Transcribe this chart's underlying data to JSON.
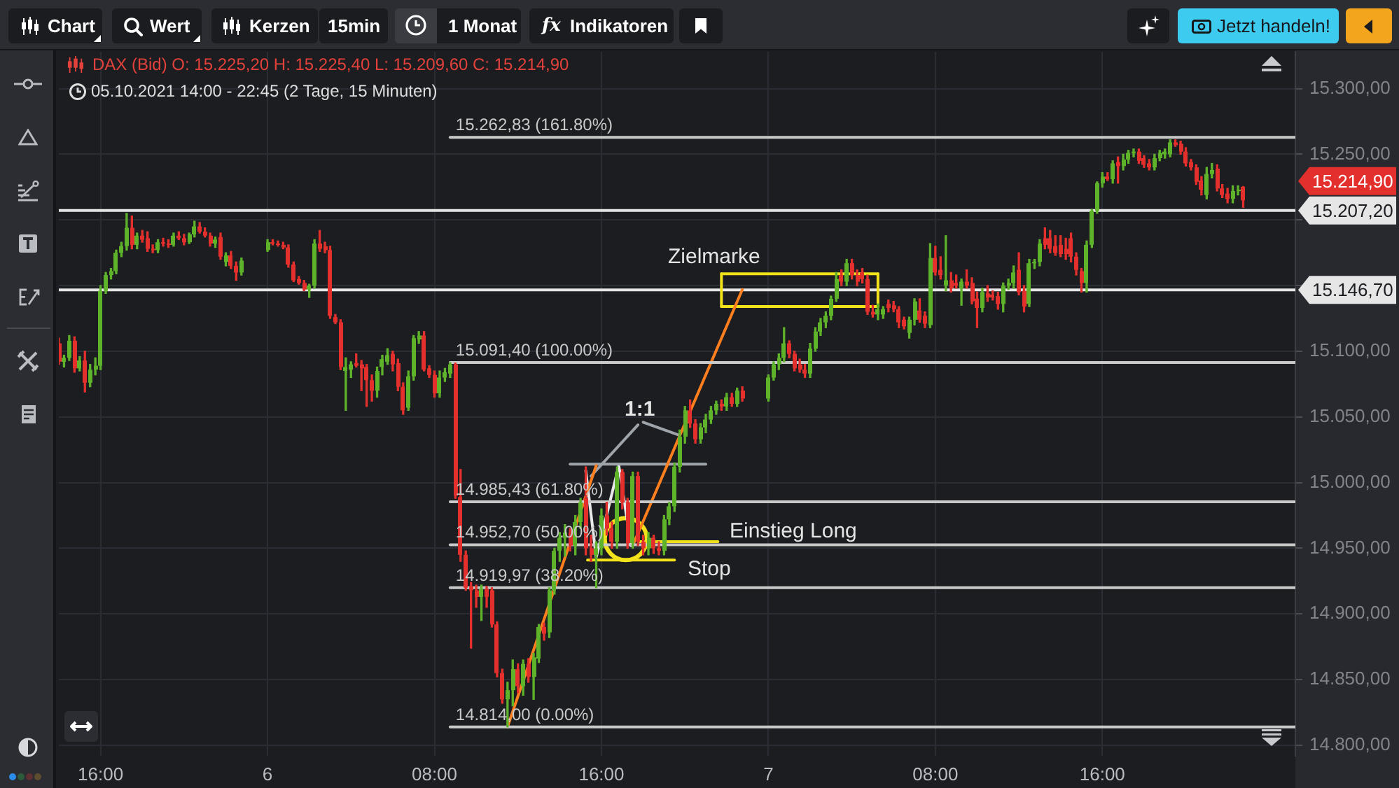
{
  "chart_data": {
    "type": "candlestick",
    "title": "DAX (Bid) O: 15.225,20 H: 15.225,40 L: 15.209,60 C: 15.214,90",
    "subtitle": "05.10.2021 14:00 - 22:45 (2 Tage, 15 Minuten)",
    "x": [
      "2021-10-05T14:00",
      "2021-10-05T14:15",
      "2021-10-05T14:30",
      "2021-10-05T14:45",
      "2021-10-05T15:00",
      "2021-10-05T15:15",
      "2021-10-05T15:30",
      "2021-10-05T15:45",
      "2021-10-05T16:00",
      "2021-10-05T16:15",
      "2021-10-05T16:30",
      "2021-10-05T16:45",
      "2021-10-05T17:00",
      "2021-10-05T17:15",
      "2021-10-05T17:30",
      "2021-10-05T17:45",
      "2021-10-05T18:00",
      "2021-10-05T18:15",
      "2021-10-05T18:30",
      "2021-10-05T18:45",
      "2021-10-05T19:00",
      "2021-10-05T19:15",
      "2021-10-05T19:30",
      "2021-10-05T19:45",
      "2021-10-05T20:00",
      "2021-10-05T20:15",
      "2021-10-05T20:30",
      "2021-10-05T20:45",
      "2021-10-05T21:00",
      "2021-10-05T21:15",
      "2021-10-05T21:30",
      "2021-10-05T21:45",
      "2021-10-05T22:00",
      "2021-10-05T22:15",
      "2021-10-05T22:30",
      "2021-10-05T22:45",
      "2021-10-06T00:00",
      "2021-10-06T00:15",
      "2021-10-06T00:30",
      "2021-10-06T00:45",
      "2021-10-06T01:00",
      "2021-10-06T01:15",
      "2021-10-06T01:30",
      "2021-10-06T01:45",
      "2021-10-06T02:00",
      "2021-10-06T02:15",
      "2021-10-06T02:30",
      "2021-10-06T02:45",
      "2021-10-06T03:00",
      "2021-10-06T03:15",
      "2021-10-06T03:30",
      "2021-10-06T03:45",
      "2021-10-06T04:00",
      "2021-10-06T04:15",
      "2021-10-06T04:30",
      "2021-10-06T04:45",
      "2021-10-06T05:00",
      "2021-10-06T05:15",
      "2021-10-06T05:30",
      "2021-10-06T05:45",
      "2021-10-06T06:00",
      "2021-10-06T06:15",
      "2021-10-06T06:30",
      "2021-10-06T06:45",
      "2021-10-06T07:00",
      "2021-10-06T07:15",
      "2021-10-06T07:30",
      "2021-10-06T07:45",
      "2021-10-06T08:00",
      "2021-10-06T08:15",
      "2021-10-06T08:30",
      "2021-10-06T08:45",
      "2021-10-06T09:00",
      "2021-10-06T09:15",
      "2021-10-06T09:30",
      "2021-10-06T09:45",
      "2021-10-06T10:00",
      "2021-10-06T10:15",
      "2021-10-06T10:30",
      "2021-10-06T10:45",
      "2021-10-06T11:00",
      "2021-10-06T11:15",
      "2021-10-06T11:30",
      "2021-10-06T11:45",
      "2021-10-06T12:00",
      "2021-10-06T12:15",
      "2021-10-06T12:30",
      "2021-10-06T12:45",
      "2021-10-06T13:00",
      "2021-10-06T13:15",
      "2021-10-06T13:30",
      "2021-10-06T13:45",
      "2021-10-06T14:00",
      "2021-10-06T14:15",
      "2021-10-06T14:30",
      "2021-10-06T14:45",
      "2021-10-06T15:00",
      "2021-10-06T15:15",
      "2021-10-06T15:30",
      "2021-10-06T15:45",
      "2021-10-06T16:00",
      "2021-10-06T16:15",
      "2021-10-06T16:30",
      "2021-10-06T16:45",
      "2021-10-06T17:00",
      "2021-10-06T17:15",
      "2021-10-06T17:30",
      "2021-10-06T17:45",
      "2021-10-06T18:00",
      "2021-10-06T18:15",
      "2021-10-06T18:30",
      "2021-10-06T18:45",
      "2021-10-06T19:00",
      "2021-10-06T19:15",
      "2021-10-06T19:30",
      "2021-10-06T19:45",
      "2021-10-06T20:00",
      "2021-10-06T20:15",
      "2021-10-06T20:30",
      "2021-10-06T20:45",
      "2021-10-06T21:00",
      "2021-10-06T21:15",
      "2021-10-06T21:30",
      "2021-10-06T21:45",
      "2021-10-06T22:00",
      "2021-10-06T22:15",
      "2021-10-06T22:30",
      "2021-10-06T22:45",
      "2021-10-07T00:00",
      "2021-10-07T00:15",
      "2021-10-07T00:30",
      "2021-10-07T00:45",
      "2021-10-07T01:00",
      "2021-10-07T01:15",
      "2021-10-07T01:30",
      "2021-10-07T01:45",
      "2021-10-07T02:00",
      "2021-10-07T02:15",
      "2021-10-07T02:30",
      "2021-10-07T02:45",
      "2021-10-07T03:00",
      "2021-10-07T03:15",
      "2021-10-07T03:30",
      "2021-10-07T03:45",
      "2021-10-07T04:00",
      "2021-10-07T04:15",
      "2021-10-07T04:30",
      "2021-10-07T04:45",
      "2021-10-07T05:00",
      "2021-10-07T05:15",
      "2021-10-07T05:30",
      "2021-10-07T05:45",
      "2021-10-07T06:00",
      "2021-10-07T06:15",
      "2021-10-07T06:30",
      "2021-10-07T06:45",
      "2021-10-07T07:00",
      "2021-10-07T07:15",
      "2021-10-07T07:30",
      "2021-10-07T07:45",
      "2021-10-07T08:00",
      "2021-10-07T08:15",
      "2021-10-07T08:30",
      "2021-10-07T08:45",
      "2021-10-07T09:00",
      "2021-10-07T09:15",
      "2021-10-07T09:30",
      "2021-10-07T09:45",
      "2021-10-07T10:00",
      "2021-10-07T10:15",
      "2021-10-07T10:30",
      "2021-10-07T10:45",
      "2021-10-07T11:00",
      "2021-10-07T11:15",
      "2021-10-07T11:30",
      "2021-10-07T11:45",
      "2021-10-07T12:00",
      "2021-10-07T12:15",
      "2021-10-07T12:30",
      "2021-10-07T12:45",
      "2021-10-07T13:00",
      "2021-10-07T13:15",
      "2021-10-07T13:30",
      "2021-10-07T13:45",
      "2021-10-07T14:00",
      "2021-10-07T14:15",
      "2021-10-07T14:30",
      "2021-10-07T14:45",
      "2021-10-07T15:00",
      "2021-10-07T15:15",
      "2021-10-07T15:30",
      "2021-10-07T15:45",
      "2021-10-07T16:00",
      "2021-10-07T16:15",
      "2021-10-07T16:30",
      "2021-10-07T16:45",
      "2021-10-07T17:00",
      "2021-10-07T17:15",
      "2021-10-07T17:30",
      "2021-10-07T17:45",
      "2021-10-07T18:00",
      "2021-10-07T18:15",
      "2021-10-07T18:30",
      "2021-10-07T18:45",
      "2021-10-07T19:00",
      "2021-10-07T19:15",
      "2021-10-07T19:30",
      "2021-10-07T19:45",
      "2021-10-07T20:00",
      "2021-10-07T20:15",
      "2021-10-07T20:30",
      "2021-10-07T20:45",
      "2021-10-07T21:00",
      "2021-10-07T21:15",
      "2021-10-07T21:30",
      "2021-10-07T21:45",
      "2021-10-07T22:00",
      "2021-10-07T22:15",
      "2021-10-07T22:30",
      "2021-10-07T22:45"
    ],
    "ohlc": [
      [
        15106,
        15110,
        15090,
        15092
      ],
      [
        15092,
        15097,
        15088,
        15095
      ],
      [
        15095,
        15112,
        15093,
        15108
      ],
      [
        15108,
        15111,
        15084,
        15087
      ],
      [
        15087,
        15096,
        15085,
        15093
      ],
      [
        15093,
        15100,
        15069,
        15076
      ],
      [
        15076,
        15090,
        15073,
        15086
      ],
      [
        15086,
        15095,
        15082,
        15089
      ],
      [
        15089,
        15150,
        15086,
        15146
      ],
      [
        15146,
        15160,
        15144,
        15158
      ],
      [
        15158,
        15163,
        15155,
        15161
      ],
      [
        15161,
        15177,
        15159,
        15175
      ],
      [
        15175,
        15183,
        15172,
        15180
      ],
      [
        15180,
        15205,
        15177,
        15194
      ],
      [
        15194,
        15203,
        15178,
        15181
      ],
      [
        15181,
        15190,
        15178,
        15188
      ],
      [
        15188,
        15192,
        15183,
        15185
      ],
      [
        15186,
        15191,
        15176,
        15178
      ],
      [
        15178,
        15181,
        15175,
        15177
      ],
      [
        15177,
        15185,
        15175,
        15183
      ],
      [
        15183,
        15186,
        15180,
        15182
      ],
      [
        15182,
        15185,
        15179,
        15181
      ],
      [
        15181,
        15190,
        15180,
        15188
      ],
      [
        15188,
        15191,
        15185,
        15186
      ],
      [
        15186,
        15189,
        15181,
        15183
      ],
      [
        15183,
        15190,
        15182,
        15189
      ],
      [
        15189,
        15199,
        15187,
        15195
      ],
      [
        15195,
        15198,
        15190,
        15191
      ],
      [
        15191,
        15194,
        15187,
        15188
      ],
      [
        15188,
        15190,
        15180,
        15182
      ],
      [
        15182,
        15187,
        15179,
        15185
      ],
      [
        15187,
        15190,
        15170,
        15172
      ],
      [
        15168,
        15175,
        15165,
        15173
      ],
      [
        15173,
        15176,
        15163,
        15165
      ],
      [
        15165,
        15168,
        15154,
        15160
      ],
      [
        15160,
        15171,
        15158,
        15169
      ],
      [
        15177,
        15185,
        15176,
        15183
      ],
      [
        15183,
        15185,
        15181,
        15182
      ],
      [
        15182,
        15184,
        15180,
        15181
      ],
      [
        15181,
        15183,
        15178,
        15179
      ],
      [
        15179,
        15181,
        15164,
        15166
      ],
      [
        15166,
        15168,
        15153,
        15154
      ],
      [
        15155,
        15157,
        15151,
        15152
      ],
      [
        15152,
        15154,
        15146,
        15147
      ],
      [
        15147,
        15151,
        15141,
        15150
      ],
      [
        15150,
        15185,
        15148,
        15182
      ],
      [
        15182,
        15192,
        15176,
        15178
      ],
      [
        15180,
        15183,
        15175,
        15177
      ],
      [
        15177,
        15180,
        15125,
        15127
      ],
      [
        15126,
        15128,
        15121,
        15122
      ],
      [
        15122,
        15124,
        15086,
        15088
      ],
      [
        15085,
        15095,
        15055,
        15088
      ],
      [
        15086,
        15092,
        15080,
        15090
      ],
      [
        15091,
        15098,
        15088,
        15089
      ],
      [
        15090,
        15093,
        15070,
        15087
      ],
      [
        15088,
        15090,
        15058,
        15078
      ],
      [
        15078,
        15082,
        15062,
        15070
      ],
      [
        15070,
        15088,
        15065,
        15085
      ],
      [
        15088,
        15097,
        15082,
        15094
      ],
      [
        15092,
        15102,
        15090,
        15097
      ],
      [
        15098,
        15100,
        15085,
        15090
      ],
      [
        15091,
        15094,
        15070,
        15073
      ],
      [
        15073,
        15076,
        15052,
        15055
      ],
      [
        15057,
        15085,
        15055,
        15081
      ],
      [
        15081,
        15112,
        15078,
        15110
      ],
      [
        15109,
        15115,
        15106,
        15112
      ],
      [
        15112,
        15115,
        15085,
        15086
      ],
      [
        15087,
        15089,
        15080,
        15082
      ],
      [
        15082,
        15085,
        15065,
        15068
      ],
      [
        15068,
        15085,
        15065,
        15080
      ],
      [
        15080,
        15087,
        15077,
        15084
      ],
      [
        15083,
        15091.4,
        15080,
        15090
      ],
      [
        15090,
        15091,
        14988,
        14990
      ],
      [
        14989,
        15010,
        14940,
        14945
      ],
      [
        14945,
        14948,
        14918,
        14920
      ],
      [
        14921,
        14924,
        14874,
        14918
      ],
      [
        14918,
        14922,
        14905,
        14913
      ],
      [
        14913,
        14922,
        14895,
        14919
      ],
      [
        14919,
        14921,
        14905,
        14913
      ],
      [
        14918,
        14920,
        14890,
        14892
      ],
      [
        14892,
        14894,
        14852,
        14855
      ],
      [
        14855,
        14858,
        14832,
        14835
      ],
      [
        14835,
        14848,
        14814,
        14842
      ],
      [
        14842,
        14865,
        14830,
        14858
      ],
      [
        14858,
        14862,
        14840,
        14845
      ],
      [
        14845,
        14865,
        14838,
        14862
      ],
      [
        14862,
        14866,
        14848,
        14852
      ],
      [
        14852,
        14870,
        14835,
        14867
      ],
      [
        14866,
        14892,
        14863,
        14890
      ],
      [
        14890,
        14893,
        14880,
        14885
      ],
      [
        14886,
        14920,
        14882,
        14918
      ],
      [
        14918,
        14950,
        14915,
        14948
      ],
      [
        14948,
        14962,
        14940,
        14958
      ],
      [
        14958,
        14968,
        14944,
        14962
      ],
      [
        14962,
        14965,
        14948,
        14952
      ],
      [
        14952,
        14975,
        14945,
        14970
      ],
      [
        14970,
        14988,
        14965,
        14985
      ],
      [
        14988,
        15012,
        14945,
        14950
      ],
      [
        14950,
        14960,
        14940,
        14945
      ],
      [
        14945,
        14955,
        14920,
        14950
      ],
      [
        14950,
        14980,
        14945,
        14975
      ],
      [
        14975,
        14985,
        14960,
        14965
      ],
      [
        14965,
        14970,
        14950,
        14955
      ],
      [
        14955,
        15012,
        14950,
        15008
      ],
      [
        15008,
        15010,
        14980,
        14985
      ],
      [
        14985,
        14988,
        14950,
        14954
      ],
      [
        14954,
        15008,
        14950,
        15005
      ],
      [
        15005,
        15008,
        14952,
        14955
      ],
      [
        14955,
        14960,
        14945,
        14950
      ],
      [
        14950,
        14962,
        14945,
        14958
      ],
      [
        14958,
        14960,
        14946,
        14950
      ],
      [
        14950,
        14955,
        14945,
        14948
      ],
      [
        14948,
        14975,
        14945,
        14972
      ],
      [
        14972,
        14985,
        14968,
        14982
      ],
      [
        14982,
        15015,
        14978,
        15012
      ],
      [
        15012,
        15040,
        15008,
        15035
      ],
      [
        15035,
        15058,
        15030,
        15055
      ],
      [
        15055,
        15063,
        15042,
        15045
      ],
      [
        15045,
        15048,
        15030,
        15033
      ],
      [
        15033,
        15045,
        15030,
        15042
      ],
      [
        15042,
        15052,
        15038,
        15048
      ],
      [
        15048,
        15058,
        15045,
        15055
      ],
      [
        15055,
        15062,
        15052,
        15060
      ],
      [
        15060,
        15063,
        15055,
        15058
      ],
      [
        15058,
        15068,
        15055,
        15065
      ],
      [
        15065,
        15068,
        15058,
        15060
      ],
      [
        15060,
        15072,
        15058,
        15070
      ],
      [
        15070,
        15073,
        15062,
        15064
      ],
      [
        15064,
        15082,
        15062,
        15080
      ],
      [
        15080,
        15092,
        15078,
        15090
      ],
      [
        15090,
        15098,
        15086,
        15095
      ],
      [
        15095,
        15118,
        15092,
        15106
      ],
      [
        15106,
        15108,
        15095,
        15098
      ],
      [
        15098,
        15100,
        15085,
        15087
      ],
      [
        15090,
        15094,
        15084,
        15086
      ],
      [
        15086,
        15090,
        15080,
        15083
      ],
      [
        15083,
        15106,
        15080,
        15102
      ],
      [
        15102,
        15118,
        15100,
        15115
      ],
      [
        15115,
        15125,
        15112,
        15122
      ],
      [
        15122,
        15130,
        15118,
        15127
      ],
      [
        15127,
        15142,
        15124,
        15140
      ],
      [
        15140,
        15160,
        15138,
        15155
      ],
      [
        15158,
        15162,
        15150,
        15153
      ],
      [
        15153,
        15170,
        15150,
        15167
      ],
      [
        15167,
        15170,
        15155,
        15158
      ],
      [
        15158,
        15162,
        15150,
        15153
      ],
      [
        15160,
        15163,
        15152,
        15155
      ],
      [
        15155,
        15158,
        15128,
        15130
      ],
      [
        15130,
        15135,
        15126,
        15128
      ],
      [
        15128,
        15136,
        15124,
        15132
      ],
      [
        15128,
        15134,
        15125,
        15132
      ],
      [
        15136,
        15139,
        15130,
        15133
      ],
      [
        15135,
        15138,
        15130,
        15132
      ],
      [
        15132,
        15134,
        15118,
        15122
      ],
      [
        15124,
        15126,
        15117,
        15119
      ],
      [
        15114,
        15126,
        15110,
        15124
      ],
      [
        15124,
        15140,
        15120,
        15138
      ],
      [
        15131,
        15140,
        15122,
        15124
      ],
      [
        15127,
        15130,
        15118,
        15121
      ],
      [
        15120,
        15182,
        15118,
        15171
      ],
      [
        15171,
        15180,
        15158,
        15160
      ],
      [
        15162,
        15172,
        15155,
        15158
      ],
      [
        15150,
        15188,
        15146,
        15154
      ],
      [
        15154,
        15160,
        15145,
        15148
      ],
      [
        15152,
        15158,
        15148,
        15150
      ],
      [
        15148,
        15155,
        15135,
        15153
      ],
      [
        15153,
        15162,
        15148,
        15150
      ],
      [
        15152,
        15156,
        15136,
        15138
      ],
      [
        15140,
        15145,
        15118,
        15133
      ],
      [
        15133,
        15148,
        15130,
        15145
      ],
      [
        15144,
        15150,
        15138,
        15141
      ],
      [
        15143,
        15146,
        15139,
        15141
      ],
      [
        15142,
        15145,
        15132,
        15136
      ],
      [
        15136,
        15152,
        15130,
        15150
      ],
      [
        15150,
        15155,
        15147,
        15152
      ],
      [
        15152,
        15165,
        15148,
        15160
      ],
      [
        15162,
        15175,
        15143,
        15145
      ],
      [
        15146,
        15150,
        15130,
        15134
      ],
      [
        15136,
        15170,
        15134,
        15167
      ],
      [
        15167,
        15170,
        15163,
        15168
      ],
      [
        15168,
        15185,
        15165,
        15182
      ],
      [
        15186,
        15194,
        15178,
        15181
      ],
      [
        15186,
        15192,
        15175,
        15178
      ],
      [
        15180,
        15188,
        15173,
        15175
      ],
      [
        15181,
        15188,
        15172,
        15174
      ],
      [
        15178,
        15186,
        15170,
        15174
      ],
      [
        15186,
        15190,
        15168,
        15172
      ],
      [
        15172,
        15175,
        15158,
        15162
      ],
      [
        15161,
        15163,
        15145,
        15152
      ],
      [
        15152,
        15184,
        15145,
        15181
      ],
      [
        15181,
        15208,
        15179,
        15207
      ],
      [
        15207,
        15229,
        15205,
        15228
      ],
      [
        15228,
        15236,
        15225,
        15233
      ],
      [
        15233,
        15236,
        15230,
        15231
      ],
      [
        15231,
        15245,
        15228,
        15243
      ],
      [
        15244,
        15248,
        15228,
        15241
      ],
      [
        15241,
        15250,
        15238,
        15246
      ],
      [
        15246,
        15253,
        15243,
        15251
      ],
      [
        15251,
        15254,
        15248,
        15252
      ],
      [
        15252,
        15254,
        15243,
        15245
      ],
      [
        15247,
        15249,
        15240,
        15242
      ],
      [
        15243,
        15246,
        15238,
        15240
      ],
      [
        15240,
        15250,
        15238,
        15247
      ],
      [
        15247,
        15253,
        15245,
        15251
      ],
      [
        15250,
        15254,
        15247,
        15252
      ],
      [
        15250,
        15261,
        15248,
        15259
      ],
      [
        15259,
        15261,
        15256,
        15257
      ],
      [
        15258,
        15260,
        15250,
        15252
      ],
      [
        15252,
        15255,
        15241,
        15243
      ],
      [
        15244,
        15246,
        15238,
        15240
      ],
      [
        15240,
        15242,
        15227,
        15229
      ],
      [
        15230,
        15233,
        15219,
        15223
      ],
      [
        15219,
        15240,
        15216,
        15235
      ],
      [
        15235,
        15243,
        15232,
        15238
      ],
      [
        15239,
        15242,
        15222,
        15224
      ],
      [
        15224,
        15227,
        15217,
        15219
      ],
      [
        15220,
        15224,
        15213,
        15216
      ],
      [
        15216,
        15226,
        15213,
        15222
      ],
      [
        15222,
        15226,
        15219,
        15223
      ],
      [
        15225.2,
        15225.4,
        15209.6,
        15214.9
      ]
    ],
    "colors": [
      "#e3302c",
      "#5fb32b",
      "#5fb32b",
      "#e3302c",
      "#5fb32b",
      "#e3302c",
      "#5fb32b",
      "#5fb32b",
      "#5fb32b",
      "#5fb32b",
      "#5fb32b",
      "#5fb32b",
      "#5fb32b",
      "#5fb32b",
      "#e3302c",
      "#5fb32b",
      "#e3302c",
      "#e3302c",
      "#e3302c",
      "#5fb32b",
      "#e3302c",
      "#e3302c",
      "#5fb32b",
      "#e3302c",
      "#e3302c",
      "#5fb32b",
      "#5fb32b",
      "#e3302c",
      "#e3302c",
      "#e3302c",
      "#5fb32b",
      "#e3302c",
      "#5fb32b",
      "#e3302c",
      "#e3302c",
      "#5fb32b",
      "#5fb32b",
      "#e3302c",
      "#e3302c",
      "#e3302c",
      "#e3302c",
      "#e3302c",
      "#e3302c",
      "#e3302c",
      "#5fb32b",
      "#5fb32b",
      "#e3302c",
      "#e3302c",
      "#e3302c",
      "#e3302c",
      "#e3302c",
      "#5fb32b",
      "#5fb32b",
      "#e3302c",
      "#e3302c",
      "#e3302c",
      "#e3302c",
      "#5fb32b",
      "#5fb32b",
      "#5fb32b",
      "#e3302c",
      "#e3302c",
      "#e3302c",
      "#5fb32b",
      "#5fb32b",
      "#5fb32b",
      "#e3302c",
      "#e3302c",
      "#e3302c",
      "#5fb32b",
      "#5fb32b",
      "#5fb32b",
      "#e3302c",
      "#e3302c",
      "#e3302c",
      "#e3302c",
      "#e3302c",
      "#5fb32b",
      "#e3302c",
      "#e3302c",
      "#e3302c",
      "#e3302c",
      "#5fb32b",
      "#5fb32b",
      "#e3302c",
      "#5fb32b",
      "#e3302c",
      "#5fb32b",
      "#5fb32b",
      "#e3302c",
      "#5fb32b",
      "#5fb32b",
      "#5fb32b",
      "#5fb32b",
      "#e3302c",
      "#5fb32b",
      "#5fb32b",
      "#e3302c",
      "#e3302c",
      "#5fb32b",
      "#5fb32b",
      "#e3302c",
      "#e3302c",
      "#5fb32b",
      "#e3302c",
      "#e3302c",
      "#5fb32b",
      "#e3302c",
      "#e3302c",
      "#5fb32b",
      "#e3302c",
      "#e3302c",
      "#5fb32b",
      "#5fb32b",
      "#5fb32b",
      "#5fb32b",
      "#5fb32b",
      "#e3302c",
      "#e3302c",
      "#5fb32b",
      "#5fb32b",
      "#5fb32b",
      "#5fb32b",
      "#e3302c",
      "#5fb32b",
      "#e3302c",
      "#5fb32b",
      "#e3302c",
      "#5fb32b",
      "#5fb32b",
      "#5fb32b",
      "#5fb32b",
      "#e3302c",
      "#e3302c",
      "#e3302c",
      "#e3302c",
      "#5fb32b",
      "#5fb32b",
      "#5fb32b",
      "#5fb32b",
      "#5fb32b",
      "#5fb32b",
      "#e3302c",
      "#5fb32b",
      "#e3302c",
      "#e3302c",
      "#e3302c",
      "#e3302c",
      "#e3302c",
      "#5fb32b",
      "#5fb32b",
      "#e3302c",
      "#e3302c",
      "#e3302c",
      "#e3302c",
      "#5fb32b",
      "#5fb32b",
      "#e3302c",
      "#e3302c",
      "#5fb32b",
      "#e3302c",
      "#e3302c",
      "#5fb32b",
      "#e3302c",
      "#e3302c",
      "#5fb32b",
      "#e3302c",
      "#e3302c",
      "#e3302c",
      "#5fb32b",
      "#e3302c",
      "#e3302c",
      "#e3302c",
      "#5fb32b",
      "#5fb32b",
      "#5fb32b",
      "#e3302c",
      "#e3302c",
      "#5fb32b",
      "#5fb32b",
      "#5fb32b",
      "#e3302c",
      "#e3302c",
      "#e3302c",
      "#e3302c",
      "#e3302c",
      "#e3302c",
      "#e3302c",
      "#e3302c",
      "#5fb32b",
      "#5fb32b",
      "#5fb32b",
      "#5fb32b",
      "#e3302c",
      "#5fb32b",
      "#e3302c",
      "#5fb32b",
      "#5fb32b",
      "#5fb32b",
      "#e3302c",
      "#e3302c",
      "#e3302c",
      "#5fb32b",
      "#5fb32b",
      "#5fb32b",
      "#5fb32b",
      "#e3302c",
      "#e3302c",
      "#e3302c",
      "#e3302c",
      "#e3302c",
      "#e3302c",
      "#5fb32b",
      "#5fb32b",
      "#e3302c",
      "#e3302c",
      "#e3302c",
      "#5fb32b",
      "#5fb32b",
      "#e3302c"
    ],
    "series": [
      {
        "type": "line",
        "color": "#c9c9c9",
        "x": [
          "2021-10-06T08:45",
          "2021-10-08T01:15"
        ],
        "values": [
          15262.83,
          15262.83
        ],
        "value_labels": [
          "15.262,83 (161.80%)",
          null
        ]
      },
      {
        "type": "line",
        "color": "#c9c9c9",
        "x": [
          "2021-10-06T08:45",
          "2021-10-08T01:15"
        ],
        "values": [
          15091.4,
          15091.4
        ],
        "value_labels": [
          "15.091,40 (100.00%)",
          null
        ]
      },
      {
        "type": "line",
        "color": "#c9c9c9",
        "x": [
          "2021-10-06T08:45",
          "2021-10-08T01:15"
        ],
        "values": [
          14985.43,
          14985.43
        ],
        "value_labels": [
          "14.985,43 (61.80%)",
          null
        ]
      },
      {
        "type": "line",
        "color": "#c9c9c9",
        "x": [
          "2021-10-06T08:45",
          "2021-10-08T01:15"
        ],
        "values": [
          14952.7,
          14952.7
        ],
        "value_labels": [
          "14.952,70 (50.00%)",
          null
        ]
      },
      {
        "type": "line",
        "color": "#c9c9c9",
        "x": [
          "2021-10-06T08:45",
          "2021-10-08T01:15"
        ],
        "values": [
          14919.97,
          14919.97
        ],
        "value_labels": [
          "14.919,97 (38.20%)",
          null
        ]
      },
      {
        "type": "line",
        "color": "#c9c9c9",
        "x": [
          "2021-10-06T08:45",
          "2021-10-08T01:15"
        ],
        "values": [
          14814,
          14814
        ],
        "value_labels": [
          "14.814,00 (0.00%)",
          null
        ]
      },
      {
        "type": "line",
        "color": "#ff7f1e",
        "x": [
          "2021-10-06T11:30",
          "2021-10-06T15:45"
        ],
        "values": [
          14814,
          15013
        ]
      },
      {
        "type": "line",
        "color": "#ff7f1e",
        "x": [
          "2021-10-06T17:30",
          "2021-10-06T22:45"
        ],
        "values": [
          14952,
          15147
        ]
      },
      {
        "type": "line",
        "color": "#9fa4aa",
        "x": [
          "2021-10-06T14:30",
          "2021-10-06T21:00"
        ],
        "values": [
          15014,
          15014
        ]
      },
      {
        "type": "line",
        "color": "#e8e8e8",
        "x": [
          "2021-10-06T15:15",
          "2021-10-06T15:45",
          "2021-10-06T16:50",
          "2021-10-06T17:25"
        ],
        "values": [
          15009,
          14943,
          15013,
          14952
        ]
      },
      {
        "type": "line",
        "color": "#9fa4aa",
        "x": [
          "2021-10-06T15:30",
          "2021-10-06T17:45"
        ],
        "values": [
          15005,
          15044
        ]
      },
      {
        "type": "line",
        "color": "#9fa4aa",
        "x": [
          "2021-10-06T18:00",
          "2021-10-06T19:45"
        ],
        "values": [
          15046,
          15036
        ]
      },
      {
        "type": "line",
        "color": "#f2e21b",
        "x": [
          "2021-10-06T17:50",
          "2021-10-06T21:35"
        ],
        "values": [
          14955,
          14955
        ]
      },
      {
        "type": "line",
        "color": "#f2e21b",
        "x": [
          "2021-10-06T15:20",
          "2021-10-06T19:30"
        ],
        "values": [
          14941,
          14941
        ]
      },
      {
        "type": "line",
        "color": "#f2e21b",
        "x": [
          "2021-10-06T21:45",
          "2021-10-07T05:15"
        ],
        "values": [
          15159,
          15159
        ]
      },
      {
        "type": "line",
        "color": "#f2e21b",
        "x": [
          "2021-10-06T21:45",
          "2021-10-07T05:15"
        ],
        "values": [
          15134,
          15134
        ]
      },
      {
        "type": "line",
        "color": "#f2e21b",
        "x": [
          "2021-10-06T21:45",
          "2021-10-06T21:45"
        ],
        "values": [
          15134,
          15159
        ]
      },
      {
        "type": "line",
        "color": "#f2e21b",
        "x": [
          "2021-10-07T05:15",
          "2021-10-07T05:15"
        ],
        "values": [
          15134,
          15159
        ]
      },
      {
        "type": "scatter",
        "color": "#f2e21b",
        "marker": "circle",
        "x": [
          "2021-10-06T17:10"
        ],
        "values": [
          14957
        ]
      }
    ],
    "ref_lines": [
      {
        "axis": "y",
        "value": 15207.2,
        "label": "15.207,20",
        "color": "#e6e6e6"
      },
      {
        "axis": "y",
        "value": 15146.7,
        "label": "15.146,70",
        "color": "#e6e6e6"
      }
    ],
    "annotations": [
      "Chart",
      "Wert",
      "Kerzen",
      "15min",
      "1 Monat",
      "fx",
      "Indikatoren",
      "Jetzt handeln!",
      "Zielmarke",
      "1:1",
      "Einstieg Long",
      "Stop",
      "15.214,90"
    ],
    "xlim": [
      "2021-10-05T14:00",
      "2021-10-08T01:15"
    ],
    "xticks": [
      {
        "value": "2021-10-05T16:00",
        "label": "16:00"
      },
      {
        "value": "2021-10-06T00:00",
        "label": "6"
      },
      {
        "value": "2021-10-06T08:00",
        "label": "08:00"
      },
      {
        "value": "2021-10-06T16:00",
        "label": "16:00"
      },
      {
        "value": "2021-10-07T00:00",
        "label": "7"
      },
      {
        "value": "2021-10-07T08:00",
        "label": "08:00"
      },
      {
        "value": "2021-10-07T16:00",
        "label": "16:00"
      }
    ],
    "ylim": [
      14792,
      15328
    ],
    "yticks": [
      {
        "value": 14800,
        "label": "14.800,00"
      },
      {
        "value": 14850,
        "label": "14.850,00"
      },
      {
        "value": 14900,
        "label": "14.900,00"
      },
      {
        "value": 14950,
        "label": "14.950,00"
      },
      {
        "value": 15000,
        "label": "15.000,00"
      },
      {
        "value": 15050,
        "label": "15.050,00"
      },
      {
        "value": 15100,
        "label": "15.100,00"
      },
      {
        "value": 15150,
        "label": null
      },
      {
        "value": 15200,
        "label": null
      },
      {
        "value": 15250,
        "label": "15.250,00"
      },
      {
        "value": 15300,
        "label": "15.300,00"
      }
    ],
    "grid": true
  }
}
